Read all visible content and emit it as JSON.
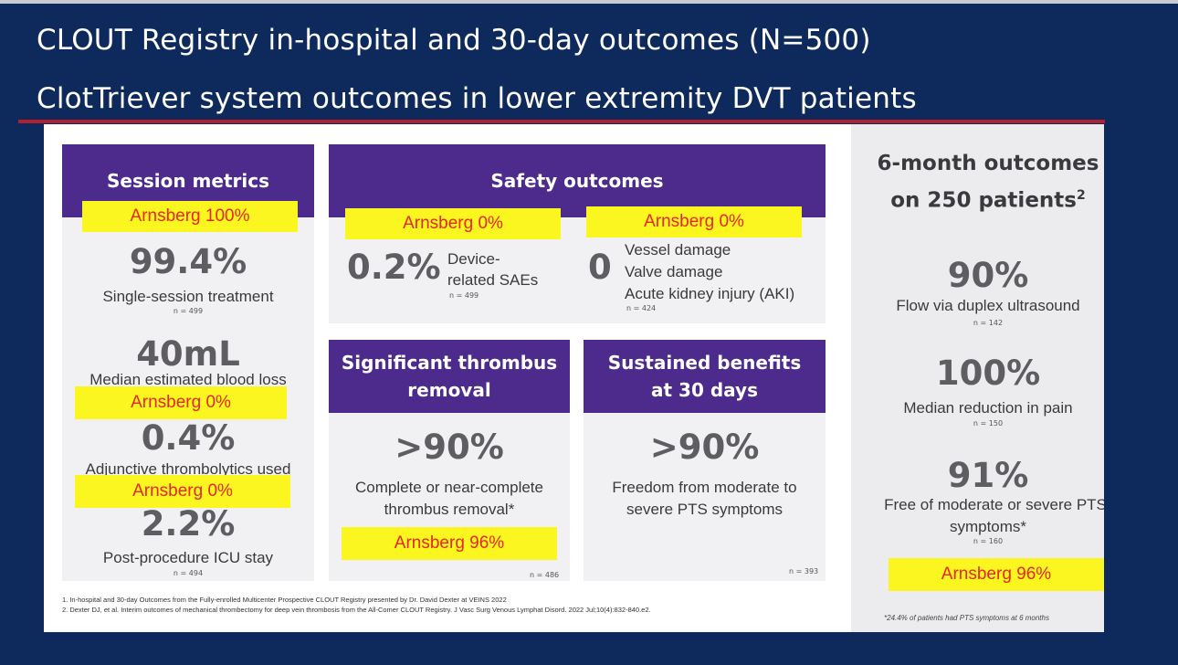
{
  "title_line1": "CLOUT Registry in-hospital and 30-day outcomes (N=500)",
  "title_line2": "ClotTriever system outcomes in lower extremity DVT patients",
  "colors": {
    "navy": "#0e2a5c",
    "purple": "#4c2b8c",
    "highlight": "#fbf61f",
    "highlight_text": "#e5281d",
    "accent_red": "#b21f2d"
  },
  "session": {
    "header": "Session metrics",
    "highlight1": "Arnsberg 100%",
    "m1_value": "99.4%",
    "m1_label": "Single-session treatment",
    "m1_n": "n = 499",
    "m2_value": "40mL",
    "m2_label": "Median estimated blood loss",
    "highlight2": "Arnsberg 0%",
    "m3_value": "0.4%",
    "m3_label": "Adjunctive thrombolytics used",
    "highlight3": "Arnsberg 0%",
    "m4_value": "2.2%",
    "m4_label": "Post-procedure ICU stay",
    "m4_n": "n = 494"
  },
  "safety": {
    "header": "Safety outcomes",
    "highlight_left": "Arnsberg 0%",
    "highlight_right": "Arnsberg 0%",
    "left_value": "0.2%",
    "left_label1": "Device-",
    "left_label2": "related SAEs",
    "left_n": "n = 499",
    "right_value": "0",
    "right_item1": "Vessel damage",
    "right_item2": "Valve damage",
    "right_item3": "Acute kidney injury (AKI)",
    "right_n": "n = 424"
  },
  "thrombus": {
    "header1": "Significant thrombus",
    "header2": "removal",
    "value": ">90%",
    "label1": "Complete or near-complete",
    "label2": "thrombus removal*",
    "highlight": "Arnsberg 96%",
    "n": "n = 486"
  },
  "sustained": {
    "header1": "Sustained benefits",
    "header2": "at 30 days",
    "value": ">90%",
    "label1": "Freedom from moderate to",
    "label2": "severe PTS symptoms",
    "n": "n = 393"
  },
  "six_month": {
    "header1": "6-month outcomes",
    "header2": "on 250 patients",
    "header_sup": "2",
    "m1_value": "90%",
    "m1_label": "Flow via duplex ultrasound",
    "m1_n": "n = 142",
    "m2_value": "100%",
    "m2_label": "Median reduction in pain",
    "m2_n": "n = 150",
    "m3_value": "91%",
    "m3_label1": "Free of moderate or severe PTS",
    "m3_label2": "symptoms*",
    "m3_n": "n = 160",
    "highlight": "Arnsberg 96%",
    "note": "*24.4% of patients had PTS symptoms at 6 months"
  },
  "footnotes": [
    "1. In-hospital and 30-day Outcomes from the Fully-enrolled Multicenter Prospective CLOUT Registry presented by Dr. David Dexter at VEINS 2022",
    "2. Dexter DJ, et al. Interim outcomes of mechanical thrombectomy for deep vein thrombosis from the All-Comer CLOUT Registry. J Vasc Surg Venous Lymphat Disord. 2022 Jul;10(4):832-840.e2."
  ]
}
